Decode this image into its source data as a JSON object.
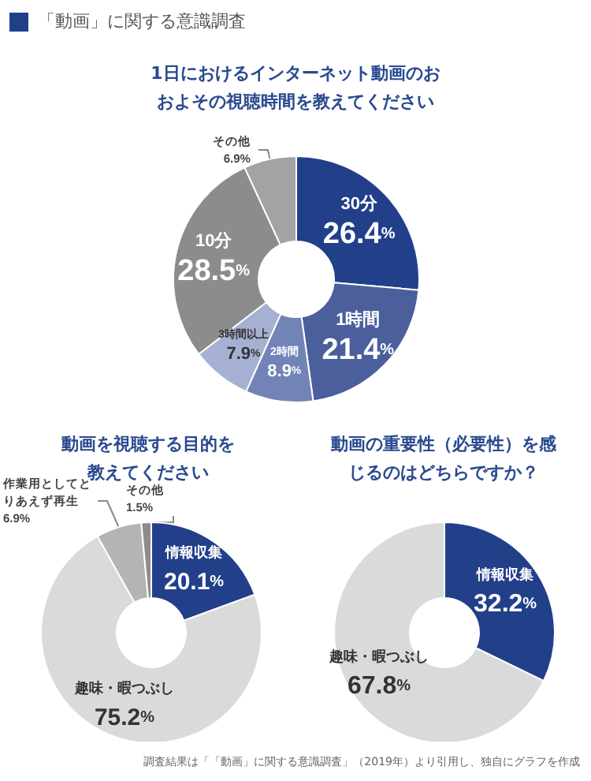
{
  "chart_data": [
    {
      "type": "donut",
      "title": "1日におけるインターネット動画のおおよその視聴時間を教えてください",
      "annotations": [
        "「動画」に関する意識調査"
      ],
      "categories": [
        "30分",
        "1時間",
        "2時間",
        "3時間以上",
        "10分",
        "その他"
      ],
      "values": [
        26.4,
        21.4,
        8.9,
        7.9,
        28.5,
        6.9
      ],
      "value_labels": [
        "26.4%",
        "21.4%",
        "8.9%",
        "7.9%",
        "28.5%",
        "6.9%"
      ],
      "colors": [
        "#223f8a",
        "#4a5f9c",
        "#7283b6",
        "#a6b0d2",
        "#8c8c8c",
        "#a3a3a3"
      ]
    },
    {
      "type": "donut",
      "title": "動画を視聴する目的を教えてください",
      "categories": [
        "情報収集",
        "趣味・暇つぶし",
        "作業用としてとりあえず再生",
        "その他"
      ],
      "values": [
        20.1,
        75.2,
        6.9,
        1.5
      ],
      "value_labels": [
        "20.1%",
        "75.2%",
        "6.9%",
        "1.5%"
      ],
      "colors": [
        "#223f8a",
        "#dadada",
        "#b4b4b4",
        "#8c8c8c"
      ]
    },
    {
      "type": "donut",
      "title": "動画の重要性（必要性）を感じるのはどちらですか？",
      "annotations": [
        "調査結果は「「動画」に関する意識調査」（2019年）より引用し、独自にグラフを作成"
      ],
      "categories": [
        "情報収集",
        "趣味・暇つぶし"
      ],
      "values": [
        32.2,
        67.8
      ],
      "value_labels": [
        "32.2%",
        "67.8%"
      ],
      "colors": [
        "#223f8a",
        "#dadada"
      ]
    }
  ]
}
